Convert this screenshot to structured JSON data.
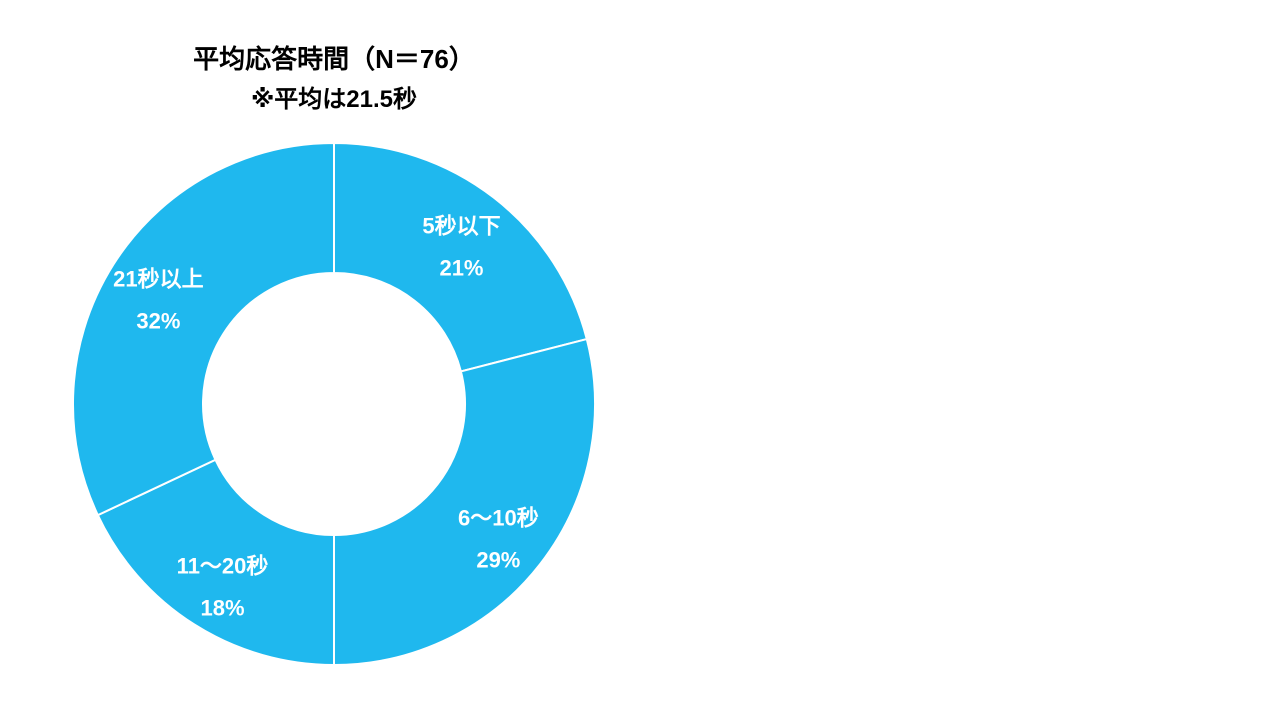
{
  "chart_data": {
    "type": "pie",
    "title": "平均応答時間（N＝76）",
    "subtitle": "※平均は21.5秒",
    "categories": [
      "5秒以下",
      "6～10秒",
      "11～20秒",
      "21秒以上"
    ],
    "values": [
      21,
      29,
      18,
      32
    ],
    "value_labels": [
      "21%",
      "29%",
      "18%",
      "32%"
    ],
    "color": "#1fb8ee",
    "separator_color": "#ffffff"
  }
}
